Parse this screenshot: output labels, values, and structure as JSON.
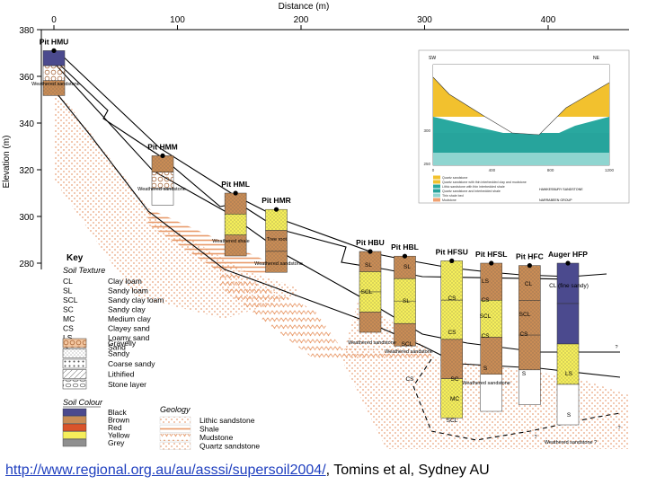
{
  "figure": {
    "x_axis_title": "Distance (m)",
    "y_axis_title": "Elevation (m)",
    "x_ticks": [
      "0",
      "100",
      "200",
      "300",
      "400"
    ],
    "y_ticks": [
      "380",
      "360",
      "340",
      "320",
      "300",
      "280"
    ],
    "pits": [
      {
        "label": "Pit HMU",
        "distance": 0,
        "elevation": 371
      },
      {
        "label": "Pit HMM",
        "distance": 88,
        "elevation": 326
      },
      {
        "label": "Pit HML",
        "distance": 147,
        "elevation": 310
      },
      {
        "label": "Pit HMR",
        "distance": 180,
        "elevation": 303
      },
      {
        "label": "Pit HBU",
        "distance": 256,
        "elevation": 285
      },
      {
        "label": "Pit HBL",
        "distance": 284,
        "elevation": 283
      },
      {
        "label": "Pit HFSU",
        "distance": 322,
        "elevation": 281
      },
      {
        "label": "Pit HFSL",
        "distance": 354,
        "elevation": 280
      },
      {
        "label": "Pit HFC",
        "distance": 385,
        "elevation": 279
      },
      {
        "label": "Auger HFP",
        "distance": 416,
        "elevation": 280
      }
    ],
    "profile_labels": [
      "Weathered sandstone",
      "Weathered sandstone",
      "Weathered shale",
      "Tree root",
      "Weathered sandstone",
      "Weathered sandstone",
      "Weathered sandstone",
      "Weathered sandstone",
      "Weathered sandstone ?",
      "?",
      "?",
      "?"
    ],
    "horizon_labels": [
      "SL",
      "SL",
      "SCL",
      "SL",
      "SCL",
      "CS",
      "CS",
      "LS",
      "CS",
      "SCL",
      "CS",
      "S",
      "CL",
      "SCL",
      "CS",
      "S",
      "CL (fine sandy)",
      "LS",
      "S",
      "SC",
      "MC",
      "CS",
      "SCL"
    ]
  },
  "key": {
    "title": "Key",
    "texture_heading": "Soil Texture",
    "textures": [
      {
        "code": "CL",
        "name": "Clay loam"
      },
      {
        "code": "SL",
        "name": "Sandy loam"
      },
      {
        "code": "SCL",
        "name": "Sandy clay loam"
      },
      {
        "code": "SC",
        "name": "Sandy clay"
      },
      {
        "code": "MC",
        "name": "Medium clay"
      },
      {
        "code": "CS",
        "name": "Clayey sand"
      },
      {
        "code": "LS",
        "name": "Loamy sand"
      },
      {
        "code": "S",
        "name": "Sand"
      }
    ],
    "patterns": [
      "Gravelly",
      "Sandy",
      "Coarse sandy",
      "Lithified",
      "Stone layer"
    ],
    "colour_heading": "Soil Colour",
    "colours": [
      {
        "name": "Black",
        "hex": "#4b4a8e"
      },
      {
        "name": "Brown",
        "hex": "#c98c55"
      },
      {
        "name": "Red",
        "hex": "#d9542b"
      },
      {
        "name": "Yellow",
        "hex": "#f5ee5a"
      },
      {
        "name": "Grey",
        "hex": "#8f8f8f"
      }
    ],
    "geology_heading": "Geology",
    "geology": [
      "Lithic sandstone",
      "Shale",
      "Mudstone",
      "Quartz sandstone"
    ]
  },
  "inset": {
    "left_label": "SW",
    "right_label": "NE",
    "x_ticks": [
      "0",
      "400",
      "800",
      "1200"
    ],
    "y_ticks": [
      "300",
      "250"
    ],
    "legend": [
      "Quartz sandstone",
      "Quartz sandstone with thin interbedded clay and mudstone",
      "Lithic sandstone with thin interbedded shale",
      "Quartz sandstone and interbedded shale",
      "Thin shale bed",
      "Mudstone"
    ],
    "notes": [
      "HAWKESBURY SANDSTONE",
      "NARRABEEN GROUP"
    ]
  },
  "caption": {
    "link": "http://www.regional.org.au/au/asssi/supersoil2004/",
    "rest": ", Tomins et al, Sydney AU"
  },
  "colors": {
    "axis": "#000000",
    "brown": "#c98c55",
    "yellow": "#f5ee5a",
    "black_soil": "#4b4a8e",
    "teal": "#2aa7a0",
    "gold": "#f2c12e"
  }
}
